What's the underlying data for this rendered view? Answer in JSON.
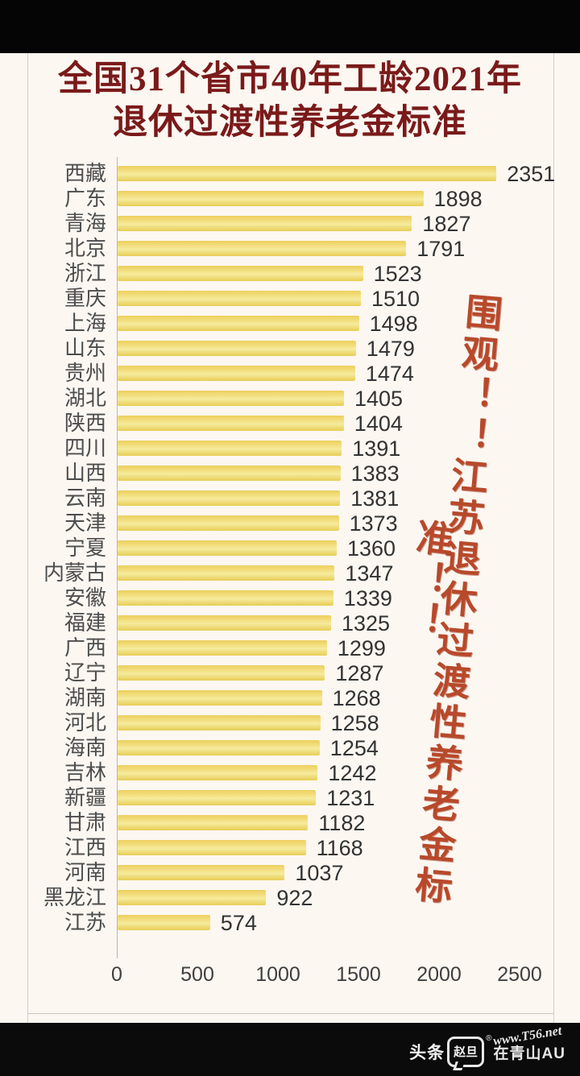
{
  "title": {
    "line1": "全国31个省市40年工龄2021年",
    "line2": "退休过渡性养老金标准",
    "color": "#7a1a1a"
  },
  "chart_data": {
    "type": "bar",
    "orientation": "horizontal",
    "categories": [
      "西藏",
      "广东",
      "青海",
      "北京",
      "浙江",
      "重庆",
      "上海",
      "山东",
      "贵州",
      "湖北",
      "陕西",
      "四川",
      "山西",
      "云南",
      "天津",
      "宁夏",
      "内蒙古",
      "安徽",
      "福建",
      "广西",
      "辽宁",
      "湖南",
      "河北",
      "海南",
      "吉林",
      "新疆",
      "甘肃",
      "江西",
      "河南",
      "黑龙江",
      "江苏"
    ],
    "values": [
      2351,
      1898,
      1827,
      1791,
      1523,
      1510,
      1498,
      1479,
      1474,
      1405,
      1404,
      1391,
      1383,
      1381,
      1373,
      1360,
      1347,
      1339,
      1325,
      1299,
      1287,
      1268,
      1258,
      1254,
      1242,
      1231,
      1182,
      1168,
      1037,
      922,
      574
    ],
    "x_ticks": [
      0,
      500,
      1000,
      1500,
      2000,
      2500
    ],
    "xlim": [
      0,
      2500
    ],
    "bar_color": "#eed05e",
    "value_labels_shown": true,
    "grid": false,
    "legend": false
  },
  "overlay": {
    "line1": "围观！！江苏退休过渡性养老金标",
    "line2": "准！！",
    "color": "#b8492b"
  },
  "watermark": {
    "prefix": "头条",
    "logo_text": "赵旦",
    "reg_mark": "®",
    "suffix": "在青山AU",
    "url": "www.T56.net"
  }
}
